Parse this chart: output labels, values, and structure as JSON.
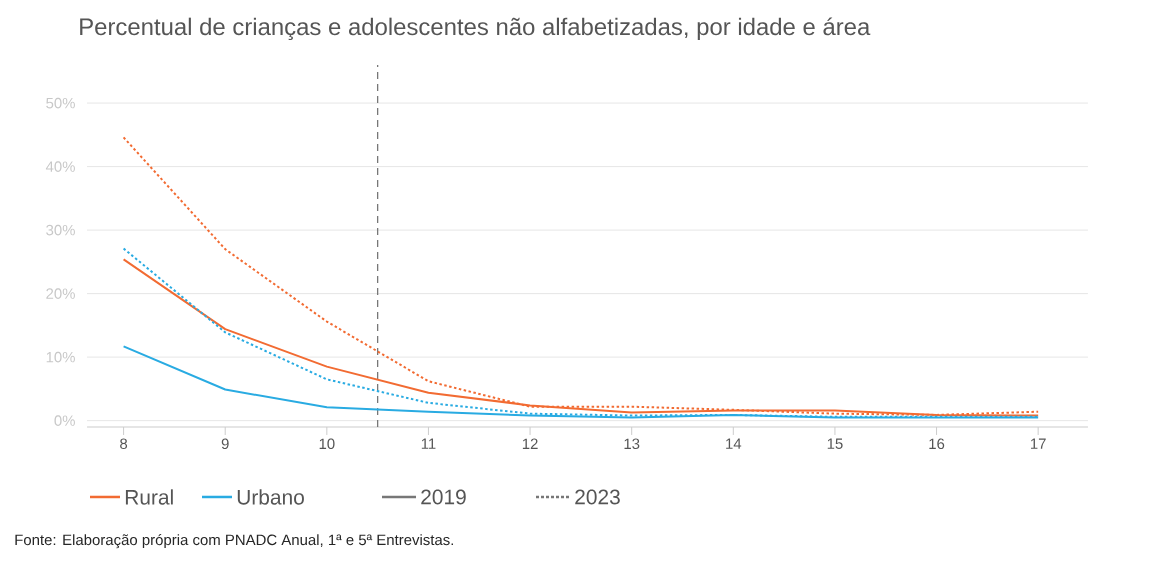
{
  "chart_data": {
    "type": "line",
    "title": "Percentual de crianças e adolescentes não alfabetizadas, por idade e área",
    "x": [
      8,
      9,
      10,
      11,
      12,
      13,
      14,
      15,
      16,
      17
    ],
    "series": [
      {
        "name": "Rural",
        "color": "#f26b32",
        "line_style": "solid",
        "values": [
          25.4,
          14.4,
          8.5,
          4.4,
          2.4,
          1.3,
          1.6,
          1.6,
          0.9,
          0.8
        ]
      },
      {
        "color": "#f26b32",
        "line_style": "dotted",
        "values": [
          44.6,
          27.0,
          15.6,
          6.2,
          2.2,
          2.2,
          1.7,
          1.1,
          0.9,
          1.4
        ]
      },
      {
        "name": "Urbano",
        "color": "#29abe2",
        "line_style": "solid",
        "values": [
          11.7,
          4.9,
          2.1,
          1.4,
          0.8,
          0.5,
          0.9,
          0.5,
          0.5,
          0.5
        ]
      },
      {
        "color": "#29abe2",
        "line_style": "dotted",
        "values": [
          27.1,
          13.9,
          6.5,
          2.8,
          1.1,
          0.8,
          0.9,
          0.6,
          0.6,
          0.6
        ]
      }
    ],
    "xlim": [
      7.64,
      17.49
    ],
    "xticks": [
      8,
      9,
      10,
      11,
      12,
      13,
      14,
      15,
      16,
      17
    ],
    "ylim": [
      -1,
      56
    ],
    "yticks": [
      {
        "value": 0,
        "label": "0%"
      },
      {
        "value": 10,
        "label": "10%"
      },
      {
        "value": 20,
        "label": "20%"
      },
      {
        "value": 30,
        "label": "30%"
      },
      {
        "value": 40,
        "label": "40%"
      },
      {
        "value": 50,
        "label": "50%"
      }
    ],
    "grid": "y",
    "legend": "bottom left",
    "ref_lines": [
      {
        "axis": "x",
        "value": 10.5,
        "color": "#777777",
        "line_style": "dashed"
      }
    ],
    "annotations": [
      "2019",
      "2023",
      "Fonte: Elaboração própria com PNADC Anual, 1ª e 5ª Entrevistas."
    ]
  }
}
